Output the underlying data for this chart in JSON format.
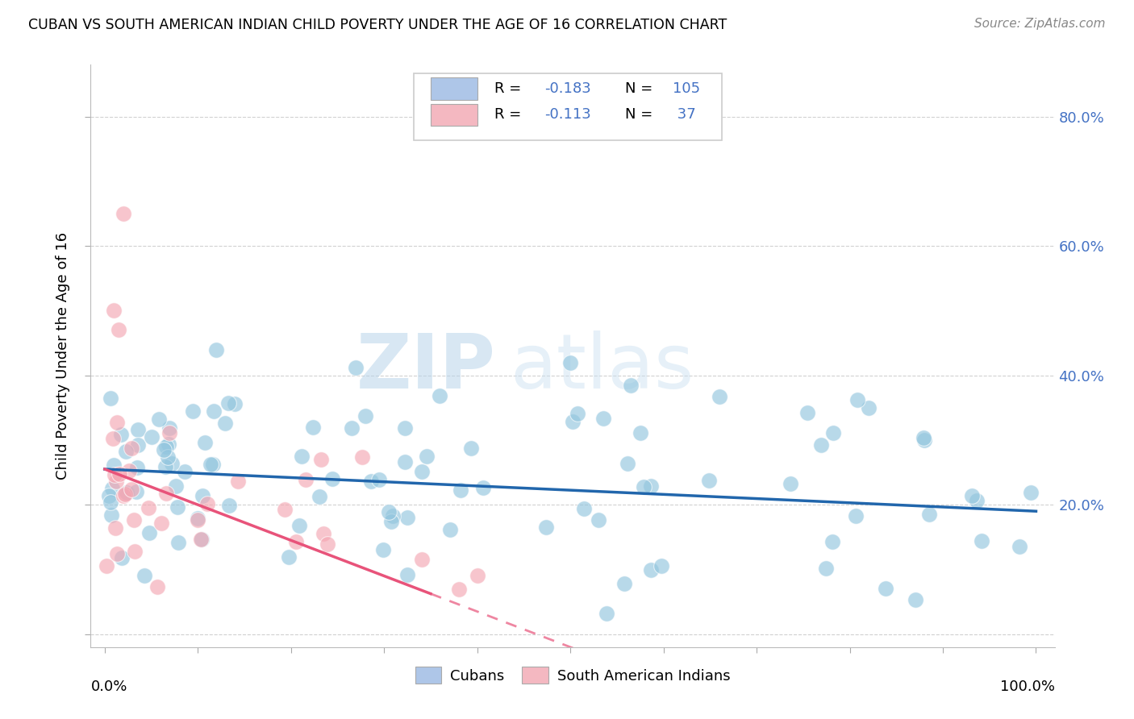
{
  "title": "CUBAN VS SOUTH AMERICAN INDIAN CHILD POVERTY UNDER THE AGE OF 16 CORRELATION CHART",
  "source": "Source: ZipAtlas.com",
  "ylabel": "Child Poverty Under the Age of 16",
  "legend_label1": "Cubans",
  "legend_label2": "South American Indians",
  "watermark_zip": "ZIP",
  "watermark_atlas": "atlas",
  "blue_dot_color": "#92c5de",
  "pink_dot_color": "#f4a6b2",
  "blue_line_color": "#2166ac",
  "pink_line_color": "#e8537a",
  "r_n_color": "#4472c4",
  "grid_color": "#cccccc",
  "right_tick_color": "#4472c4",
  "legend_border_color": "#cccccc",
  "blue_legend_fill": "#aec6e8",
  "pink_legend_fill": "#f4b8c1",
  "blue_intercept": 0.255,
  "blue_slope": -0.065,
  "pink_intercept": 0.255,
  "pink_slope": -0.55,
  "seed": 17
}
